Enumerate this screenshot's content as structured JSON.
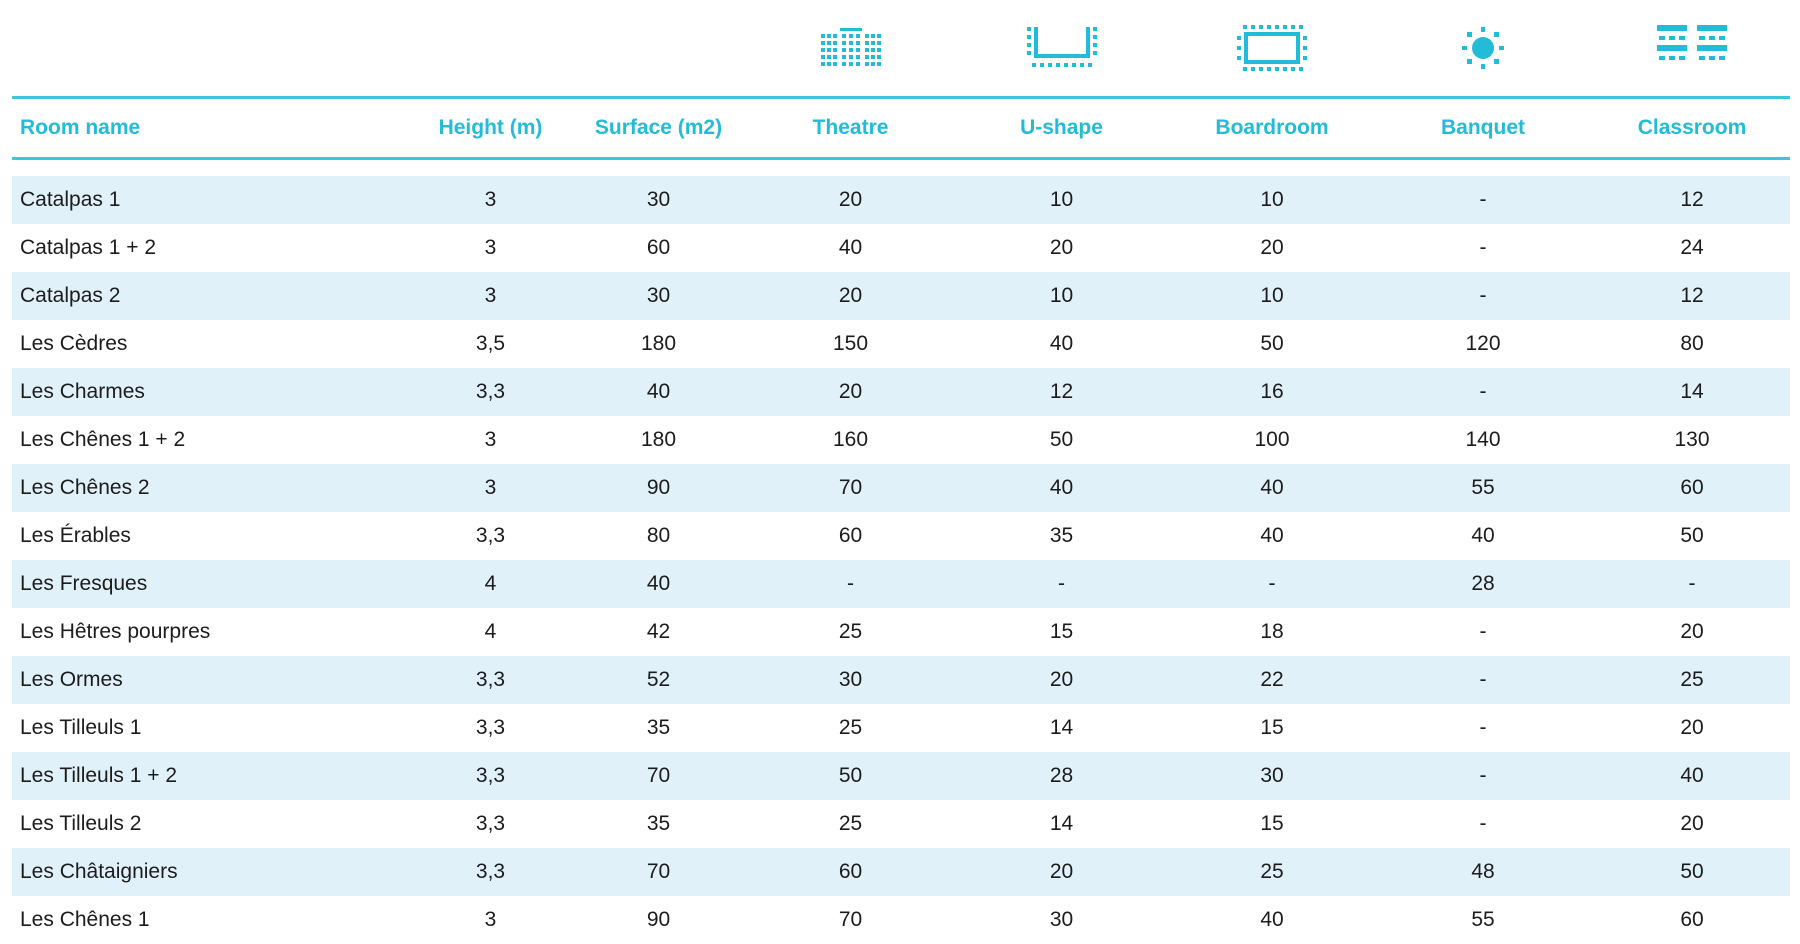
{
  "table": {
    "icons": [
      {
        "column": "theatre",
        "icon": "theatre-seating-icon"
      },
      {
        "column": "ushape",
        "icon": "u-shape-seating-icon"
      },
      {
        "column": "boardroom",
        "icon": "boardroom-seating-icon"
      },
      {
        "column": "banquet",
        "icon": "banquet-seating-icon"
      },
      {
        "column": "classroom",
        "icon": "classroom-seating-icon"
      }
    ],
    "headers": [
      "Room name",
      "Height (m)",
      "Surface (m2)",
      "Theatre",
      "U-shape",
      "Boardroom",
      "Banquet",
      "Classroom"
    ],
    "rows": [
      [
        "Catalpas 1",
        "3",
        "30",
        "20",
        "10",
        "10",
        "-",
        "12"
      ],
      [
        "Catalpas 1 + 2",
        "3",
        "60",
        "40",
        "20",
        "20",
        "-",
        "24"
      ],
      [
        "Catalpas 2",
        "3",
        "30",
        "20",
        "10",
        "10",
        "-",
        "12"
      ],
      [
        "Les Cèdres",
        "3,5",
        "180",
        "150",
        "40",
        "50",
        "120",
        "80"
      ],
      [
        "Les Charmes",
        "3,3",
        "40",
        "20",
        "12",
        "16",
        "-",
        "14"
      ],
      [
        "Les Chênes 1 + 2",
        "3",
        "180",
        "160",
        "50",
        "100",
        "140",
        "130"
      ],
      [
        "Les Chênes 2",
        "3",
        "90",
        "70",
        "40",
        "40",
        "55",
        "60"
      ],
      [
        "Les Érables",
        "3,3",
        "80",
        "60",
        "35",
        "40",
        "40",
        "50"
      ],
      [
        "Les Fresques",
        "4",
        "40",
        "-",
        "-",
        "-",
        "28",
        "-"
      ],
      [
        "Les Hêtres pourpres",
        "4",
        "42",
        "25",
        "15",
        "18",
        "-",
        "20"
      ],
      [
        "Les Ormes",
        "3,3",
        "52",
        "30",
        "20",
        "22",
        "-",
        "25"
      ],
      [
        "Les Tilleuls 1",
        "3,3",
        "35",
        "25",
        "14",
        "15",
        "-",
        "20"
      ],
      [
        "Les Tilleuls 1 + 2",
        "3,3",
        "70",
        "50",
        "28",
        "30",
        "-",
        "40"
      ],
      [
        "Les Tilleuls 2",
        "3,3",
        "35",
        "25",
        "14",
        "15",
        "-",
        "20"
      ],
      [
        "Les Châtaigniers",
        "3,3",
        "70",
        "60",
        "20",
        "25",
        "48",
        "50"
      ],
      [
        "Les Chênes 1",
        "3",
        "90",
        "70",
        "30",
        "40",
        "55",
        "60"
      ]
    ],
    "colors": {
      "accent": "#22bcd8",
      "rule": "#3cc6dd",
      "row_shade": "#e0f1fa",
      "text": "#1c1c1c"
    }
  }
}
